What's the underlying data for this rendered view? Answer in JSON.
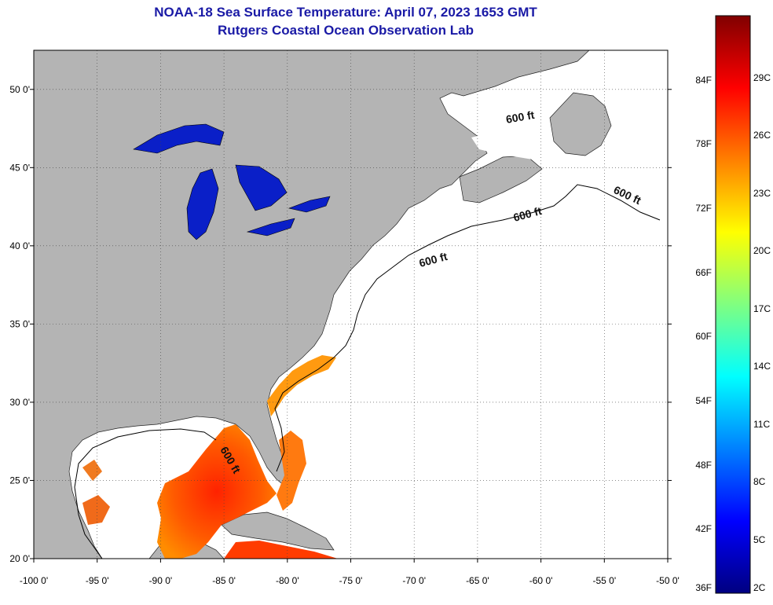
{
  "title": {
    "line1": "NOAA-18 Sea Surface Temperature:  April 07, 2023 1653 GMT",
    "line2": "Rutgers Coastal Ocean Observation Lab"
  },
  "map": {
    "lon_ticks": [
      {
        "value": -100,
        "label": "-100 0'"
      },
      {
        "value": -95,
        "label": "-95 0'"
      },
      {
        "value": -90,
        "label": "-90 0'"
      },
      {
        "value": -85,
        "label": "-85 0'"
      },
      {
        "value": -80,
        "label": "-80 0'"
      },
      {
        "value": -75,
        "label": "-75 0'"
      },
      {
        "value": -70,
        "label": "-70 0'"
      },
      {
        "value": -65,
        "label": "-65 0'"
      },
      {
        "value": -60,
        "label": "-60 0'"
      },
      {
        "value": -55,
        "label": "-55 0'"
      },
      {
        "value": -50,
        "label": "-50 0'"
      }
    ],
    "lat_ticks": [
      {
        "value": 20,
        "label": "20 0'"
      },
      {
        "value": 25,
        "label": "25 0'"
      },
      {
        "value": 30,
        "label": "30 0'"
      },
      {
        "value": 35,
        "label": "35 0'"
      },
      {
        "value": 40,
        "label": "40 0'"
      },
      {
        "value": 45,
        "label": "45 0'"
      },
      {
        "value": 50,
        "label": "50 0'"
      }
    ],
    "contour_label": "600 ft",
    "colors": {
      "land": "#b4b4b4",
      "ocean_nodata": "#ffffff",
      "lakes": "#0a1fc8",
      "warm": "#ff4a00",
      "gridline": "#444444"
    }
  },
  "colorbar": {
    "range_f": [
      36,
      90
    ],
    "fahrenheit": [
      {
        "value": 36,
        "label": "36F"
      },
      {
        "value": 42,
        "label": "42F"
      },
      {
        "value": 48,
        "label": "48F"
      },
      {
        "value": 54,
        "label": "54F"
      },
      {
        "value": 60,
        "label": "60F"
      },
      {
        "value": 66,
        "label": "66F"
      },
      {
        "value": 72,
        "label": "72F"
      },
      {
        "value": 78,
        "label": "78F"
      },
      {
        "value": 84,
        "label": "84F"
      }
    ],
    "celsius": [
      {
        "value": 2,
        "label": "2C"
      },
      {
        "value": 5,
        "label": "5C"
      },
      {
        "value": 8,
        "label": "8C"
      },
      {
        "value": 11,
        "label": "11C"
      },
      {
        "value": 14,
        "label": "14C"
      },
      {
        "value": 17,
        "label": "17C"
      },
      {
        "value": 20,
        "label": "20C"
      },
      {
        "value": 23,
        "label": "23C"
      },
      {
        "value": 26,
        "label": "26C"
      },
      {
        "value": 29,
        "label": "29C"
      }
    ],
    "gradient": [
      "#000080",
      "#0000ff",
      "#0080ff",
      "#00ffff",
      "#80ff80",
      "#ffff00",
      "#ff8000",
      "#ff0000",
      "#800000"
    ]
  }
}
